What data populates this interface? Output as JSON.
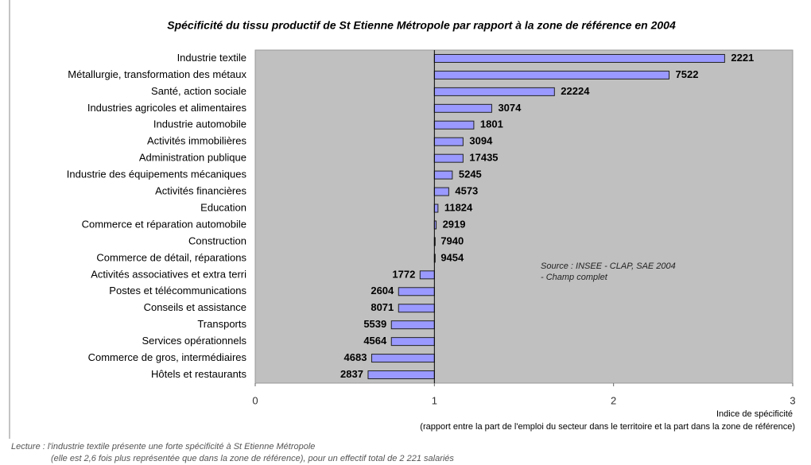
{
  "chart_data": {
    "type": "bar",
    "orientation": "horizontal",
    "title": "Spécificité du tissu productif de St Etienne Métropole par rapport à la zone de référence en 2004",
    "categories": [
      "Industrie textile",
      "Métallurgie, transformation des métaux",
      "Santé, action sociale",
      "Industries agricoles et alimentaires",
      "Industrie automobile",
      "Activités immobilières",
      "Administration publique",
      "Industrie des équipements mécaniques",
      "Activités financières",
      "Education",
      "Commerce et réparation automobile",
      "Construction",
      "Commerce de détail, réparations",
      "Activités associatives et extra terri",
      "Postes et télécommunications",
      "Conseils et assistance",
      "Transports",
      "Services opérationnels",
      "Commerce de gros, intermédiaires",
      "Hôtels et restaurants"
    ],
    "values": [
      2.62,
      2.31,
      1.67,
      1.32,
      1.22,
      1.16,
      1.16,
      1.1,
      1.08,
      1.02,
      1.01,
      1.0,
      1.0,
      0.92,
      0.8,
      0.8,
      0.76,
      0.76,
      0.65,
      0.63
    ],
    "counts": [
      2221,
      7522,
      22224,
      3074,
      1801,
      3094,
      17435,
      5245,
      4573,
      11824,
      2919,
      7940,
      9454,
      1772,
      2604,
      8071,
      5539,
      4564,
      4683,
      2837
    ],
    "base": 1,
    "color": "#9999ff",
    "plot_background": "#c0c0c0",
    "xlim": [
      0,
      3
    ],
    "xticks": [
      0,
      1,
      2,
      3
    ],
    "xlabel": "Indice de spécificité",
    "xlabel_note": "(rapport entre la part de l'emploi du secteur dans le territoire et la part dans la zone de référence)",
    "source": [
      "Source : INSEE - CLAP, SAE 2004",
      "- Champ complet"
    ],
    "lecture": [
      "Lecture : l'industrie textile présente une forte spécificité à St Etienne Métropole",
      "(elle est 2,6 fois plus représentée que dans la zone de référence), pour un effectif total de 2 221 salariés"
    ]
  }
}
